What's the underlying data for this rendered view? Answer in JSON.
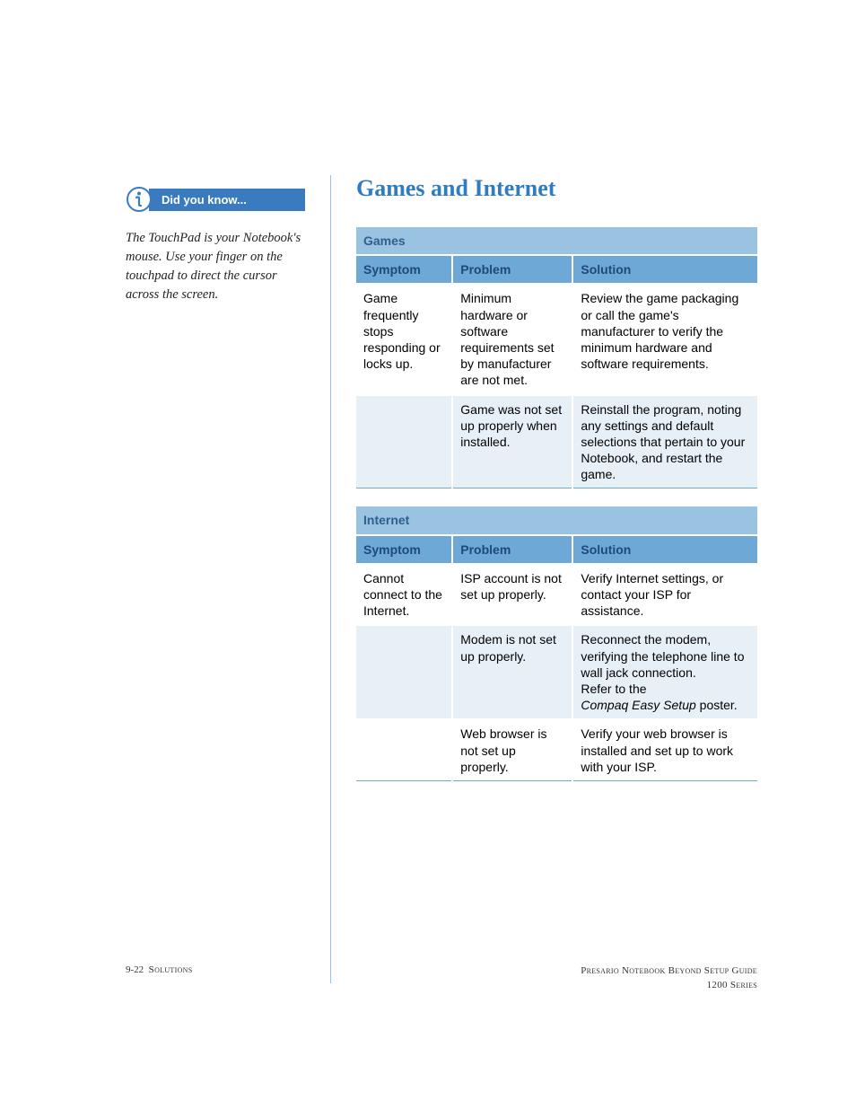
{
  "colors": {
    "accent": "#2f7cc0",
    "header_bg": "#6ea8d6",
    "subheader_bg": "#9ac3e2",
    "alt_row_bg": "#e8f0f7",
    "callout_bg": "#3a7bbf",
    "callout_icon_stroke": "#3a7bbf",
    "text": "#000000",
    "page_bg": "#ffffff"
  },
  "callout": {
    "label": "Did you know...",
    "body": "The TouchPad is your Notebook's mouse. Use your finger on the touchpad to direct the cursor across the screen."
  },
  "title": "Games and Internet",
  "tables": [
    {
      "name": "Games",
      "columns": [
        "Symptom",
        "Problem",
        "Solution"
      ],
      "column_widths_pct": [
        24,
        30,
        46
      ],
      "rows": [
        {
          "symptom": "Game frequently stops responding or locks up.",
          "problem": "Minimum hardware or software requirements set by manufacturer are not met.",
          "solution": "Review the game packaging or call the game's manufacturer to verify the minimum hardware and software requirements."
        },
        {
          "symptom": "",
          "problem": "Game was not set up properly when installed.",
          "solution": "Reinstall the program, noting any settings and default selections that pertain to your Notebook, and restart the game."
        }
      ]
    },
    {
      "name": "Internet",
      "columns": [
        "Symptom",
        "Problem",
        "Solution"
      ],
      "column_widths_pct": [
        24,
        30,
        46
      ],
      "rows": [
        {
          "symptom": "Cannot connect to the Internet.",
          "problem": "ISP account is not set up properly.",
          "solution": "Verify Internet settings, or contact your ISP for assistance."
        },
        {
          "symptom": "",
          "problem": "Modem is not set up properly.",
          "solution_html": "Reconnect the modem, verifying the telephone line to wall jack connection.<br>Refer to the<br><span class='italic-ref'>Compaq Easy Setup</span> poster."
        },
        {
          "symptom": "",
          "problem": "Web browser is not set up properly.",
          "solution": "Verify your web browser is installed and set up to work with your ISP."
        }
      ]
    }
  ],
  "footer": {
    "left_page": "9-22",
    "left_section": "Solutions",
    "right_line1": "Presario Notebook Beyond Setup Guide",
    "right_line2": "1200 Series"
  }
}
